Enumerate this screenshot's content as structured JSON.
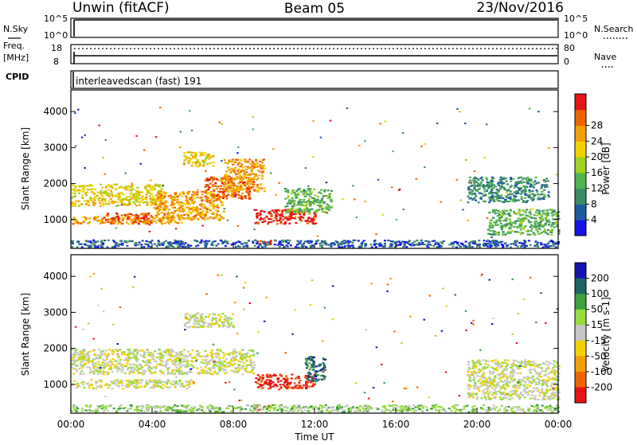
{
  "header": {
    "title": "Unwin (fitACF)",
    "beam": "Beam 05",
    "date": "23/Nov/2016"
  },
  "status": {
    "nsky_label": "N.Sky",
    "nsky_ticks": [
      "10^5",
      "10^0"
    ],
    "nsearch_label": "N.Search",
    "freq_label": "Freq.",
    "freq_unit": "[MHz]",
    "freq_ticks": [
      "18",
      "8"
    ],
    "nave_label": "Nave",
    "nave_ticks": [
      "80",
      "0"
    ],
    "cpid_label": "CPID",
    "cpid_text": "interleavedscan (fast) 191"
  },
  "colors": {
    "power": [
      "#1414e6",
      "#1e5aa0",
      "#3c8c64",
      "#50b450",
      "#a0d21e",
      "#f0d200",
      "#f0a000",
      "#f06400",
      "#e61414"
    ],
    "velocity": [
      "#e61414",
      "#f06400",
      "#f0a000",
      "#f0d200",
      "#c8c8c8",
      "#96dc3c",
      "#3ca03c",
      "#1e6464",
      "#1414b4"
    ]
  },
  "chart_data": [
    {
      "type": "heatmap",
      "name": "power",
      "ylabel": "Slant Range [km]",
      "ylim": [
        200,
        4600
      ],
      "xlim": [
        0,
        24
      ],
      "yticks": [
        "1000",
        "2000",
        "3000",
        "4000"
      ],
      "colorbar_label": "Power [dB]",
      "colorbar_ticks": [
        "4",
        "8",
        "12",
        "16",
        "20",
        "24",
        "28"
      ],
      "regions": [
        {
          "x": [
            0.0,
            4.5
          ],
          "y": [
            1400,
            2000
          ],
          "level": 5
        },
        {
          "x": [
            0.0,
            5.5
          ],
          "y": [
            900,
            1100
          ],
          "level": 6
        },
        {
          "x": [
            1.5,
            4.0
          ],
          "y": [
            900,
            1200
          ],
          "level": 7
        },
        {
          "x": [
            4.0,
            7.5
          ],
          "y": [
            1000,
            1800
          ],
          "level": 6
        },
        {
          "x": [
            5.5,
            7.0
          ],
          "y": [
            2500,
            2900
          ],
          "level": 5
        },
        {
          "x": [
            6.5,
            9.0
          ],
          "y": [
            1600,
            2200
          ],
          "level": 7
        },
        {
          "x": [
            7.5,
            9.5
          ],
          "y": [
            1800,
            2700
          ],
          "level": 6
        },
        {
          "x": [
            9.0,
            12.0
          ],
          "y": [
            900,
            1300
          ],
          "level": 8
        },
        {
          "x": [
            10.5,
            12.8
          ],
          "y": [
            1200,
            1900
          ],
          "level": 3
        },
        {
          "x": [
            9.0,
            9.8
          ],
          "y": [
            300,
            450
          ],
          "level": 8
        },
        {
          "x": [
            19.5,
            23.5
          ],
          "y": [
            1500,
            2200
          ],
          "level": 2
        },
        {
          "x": [
            20.5,
            24.0
          ],
          "y": [
            600,
            1300
          ],
          "level": 3
        },
        {
          "x": [
            0.0,
            24.0
          ],
          "y": [
            250,
            450
          ],
          "level": 1
        }
      ]
    },
    {
      "type": "heatmap",
      "name": "velocity",
      "xlabel": "Time UT",
      "ylabel": "Slant Range [km]",
      "ylim": [
        200,
        4600
      ],
      "xlim": [
        0,
        24
      ],
      "xticks": [
        "00:00",
        "04:00",
        "08:00",
        "12:00",
        "16:00",
        "20:00",
        "00:00"
      ],
      "yticks": [
        "1000",
        "2000",
        "3000",
        "4000"
      ],
      "colorbar_label": "Velocity [m s-1]",
      "colorbar_ticks": [
        "200",
        "100",
        "50",
        "15",
        "-15",
        "-50",
        "-100",
        "-200"
      ],
      "regions": [
        {
          "x": [
            0.0,
            9.0
          ],
          "y": [
            1300,
            2000
          ],
          "level": 4
        },
        {
          "x": [
            0.0,
            6.0
          ],
          "y": [
            900,
            1150
          ],
          "level": 4
        },
        {
          "x": [
            5.5,
            8.0
          ],
          "y": [
            2600,
            3000
          ],
          "level": 4
        },
        {
          "x": [
            9.0,
            12.0
          ],
          "y": [
            900,
            1300
          ],
          "level": 0
        },
        {
          "x": [
            11.5,
            12.5
          ],
          "y": [
            1100,
            1800
          ],
          "level": 7
        },
        {
          "x": [
            9.0,
            9.8
          ],
          "y": [
            300,
            450
          ],
          "level": 1
        },
        {
          "x": [
            19.5,
            24.0
          ],
          "y": [
            600,
            1700
          ],
          "level": 4
        },
        {
          "x": [
            0.0,
            24.0
          ],
          "y": [
            250,
            450
          ],
          "level": 5
        }
      ]
    }
  ]
}
